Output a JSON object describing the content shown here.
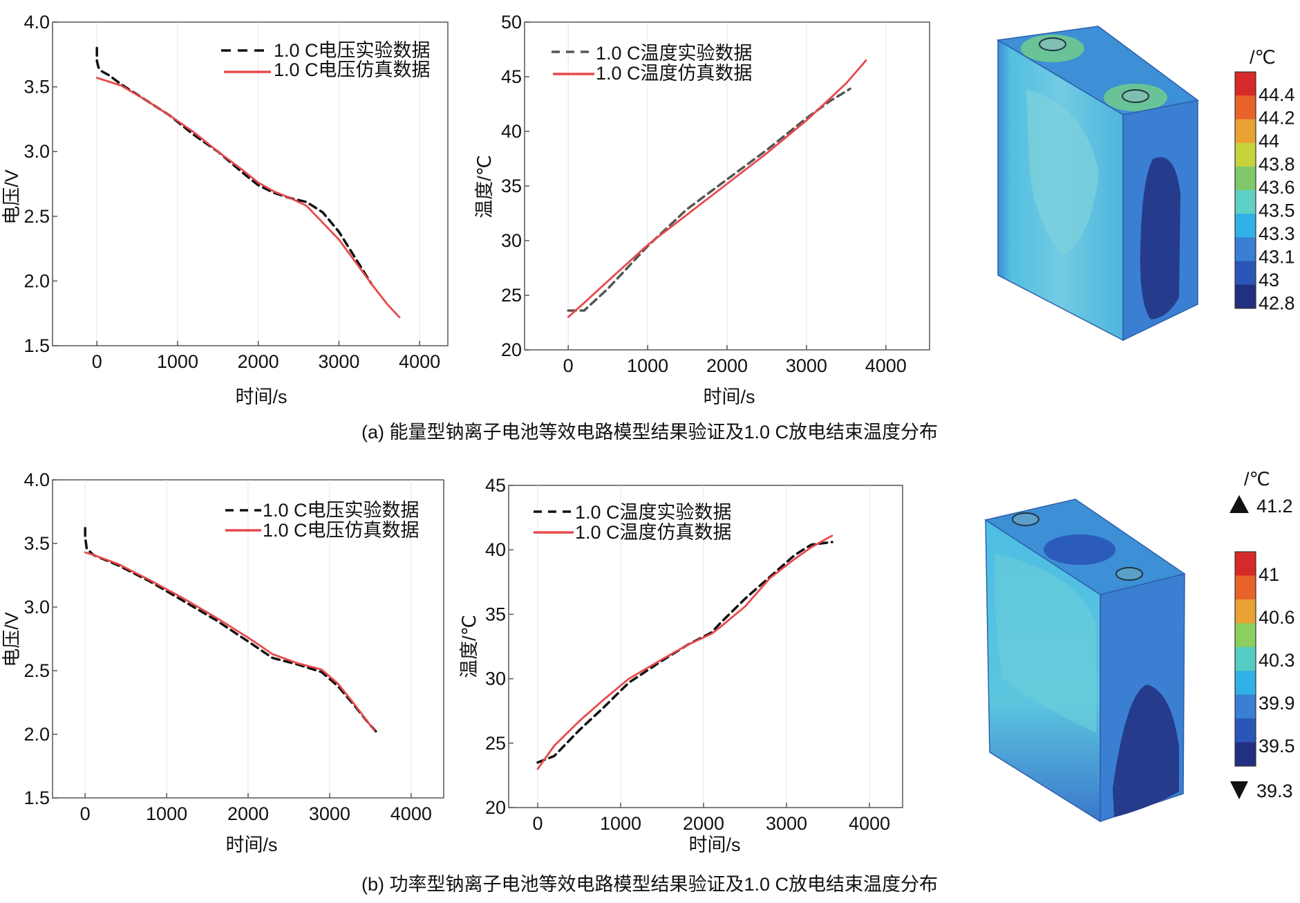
{
  "panels": [
    {
      "caption": "(a) 能量型钠离子电池等效电路模型结果验证及1.0 C放电结束温度分布",
      "colorbar": {
        "unit": "/℃",
        "labels": [
          "44.4",
          "44.2",
          "44",
          "43.8",
          "43.6",
          "43.5",
          "43.3",
          "43.1",
          "43",
          "42.8"
        ],
        "colors": [
          "#d62a2a",
          "#e8622a",
          "#e9a233",
          "#c8d23a",
          "#7fc96b",
          "#5fd0c4",
          "#2fb0e6",
          "#3a7fd2",
          "#2a56b8",
          "#232f80"
        ],
        "max_label": "",
        "min_label": ""
      }
    },
    {
      "caption": "(b) 功率型钠离子电池等效电路模型结果验证及1.0 C放电结束温度分布",
      "colorbar": {
        "unit": "/℃",
        "labels": [
          "41",
          "40.6",
          "40.3",
          "39.9",
          "39.5"
        ],
        "colors": [
          "#d62a2a",
          "#e8622a",
          "#e9a233",
          "#8bcf5e",
          "#55ccc4",
          "#2fb0e6",
          "#3a7fd2",
          "#2a56b8",
          "#232f80"
        ],
        "max_label": "41.2",
        "min_label": "39.3"
      }
    }
  ],
  "chart_data": [
    {
      "type": "line",
      "xlabel": "时间/s",
      "ylabel": "电压/V",
      "xlim": [
        -550,
        4350
      ],
      "ylim": [
        1.5,
        4.0
      ],
      "xticks": [
        0,
        1000,
        2000,
        3000,
        4000
      ],
      "yticks": [
        1.5,
        2.0,
        2.5,
        3.0,
        3.5,
        4.0
      ],
      "legend_position": "top-right",
      "series": [
        {
          "name": "1.0 C电压实验数据",
          "style": "dashed",
          "color": "#111111",
          "x": [
            0,
            0,
            20,
            60,
            150,
            300,
            600,
            900,
            1200,
            1500,
            1800,
            2000,
            2200,
            2400,
            2600,
            2800,
            3000,
            3200,
            3400
          ],
          "y": [
            3.8,
            3.7,
            3.65,
            3.62,
            3.59,
            3.52,
            3.4,
            3.28,
            3.13,
            3.0,
            2.84,
            2.74,
            2.68,
            2.64,
            2.61,
            2.53,
            2.38,
            2.18,
            1.98
          ]
        },
        {
          "name": "1.0 C电压仿真数据",
          "style": "solid",
          "color": "#e8484b",
          "x": [
            0,
            300,
            600,
            900,
            1200,
            1500,
            1800,
            2000,
            2200,
            2400,
            2600,
            2800,
            3000,
            3200,
            3400,
            3600,
            3750
          ],
          "y": [
            3.57,
            3.51,
            3.4,
            3.28,
            3.15,
            3.0,
            2.86,
            2.76,
            2.69,
            2.64,
            2.58,
            2.45,
            2.32,
            2.15,
            1.98,
            1.82,
            1.72
          ]
        }
      ]
    },
    {
      "type": "line",
      "xlabel": "时间/s",
      "ylabel": "温度/℃",
      "xlim": [
        -550,
        4550
      ],
      "ylim": [
        20,
        50
      ],
      "xticks": [
        0,
        1000,
        2000,
        3000,
        4000
      ],
      "yticks": [
        20,
        25,
        30,
        35,
        40,
        45,
        50
      ],
      "legend_position": "top-left",
      "series": [
        {
          "name": "1.0 C温度实验数据",
          "style": "dashed",
          "color": "#555555",
          "x": [
            0,
            200,
            500,
            1000,
            1500,
            2000,
            2500,
            3000,
            3300,
            3550
          ],
          "y": [
            23.6,
            23.6,
            25.6,
            29.5,
            32.9,
            35.6,
            38.3,
            41.2,
            42.8,
            43.9
          ]
        },
        {
          "name": "1.0 C温度仿真数据",
          "style": "solid",
          "color": "#e8484b",
          "x": [
            0,
            200,
            500,
            1000,
            1500,
            2000,
            2500,
            3000,
            3500,
            3750
          ],
          "y": [
            23.0,
            24.3,
            26.3,
            29.6,
            32.4,
            35.2,
            38.0,
            41.0,
            44.4,
            46.5
          ]
        }
      ]
    },
    {
      "type": "line",
      "xlabel": "时间/s",
      "ylabel": "电压/V",
      "xlim": [
        -400,
        4400
      ],
      "ylim": [
        1.5,
        4.0
      ],
      "xticks": [
        0,
        1000,
        2000,
        3000,
        4000
      ],
      "yticks": [
        1.5,
        2.0,
        2.5,
        3.0,
        3.5,
        4.0
      ],
      "legend_position": "top-right",
      "series": [
        {
          "name": "1.0 C电压实验数据",
          "style": "dashed",
          "color": "#111111",
          "x": [
            0,
            0,
            20,
            100,
            400,
            800,
            1200,
            1600,
            2000,
            2300,
            2600,
            2900,
            3100,
            3300,
            3500,
            3600
          ],
          "y": [
            3.62,
            3.55,
            3.46,
            3.41,
            3.33,
            3.2,
            3.05,
            2.9,
            2.73,
            2.6,
            2.55,
            2.49,
            2.38,
            2.23,
            2.07,
            2.0
          ]
        },
        {
          "name": "1.0 C电压仿真数据",
          "style": "solid",
          "color": "#e8484b",
          "x": [
            0,
            100,
            400,
            800,
            1200,
            1600,
            2000,
            2300,
            2600,
            2900,
            3100,
            3300,
            3500,
            3550
          ],
          "y": [
            3.43,
            3.41,
            3.34,
            3.21,
            3.07,
            2.92,
            2.76,
            2.63,
            2.56,
            2.51,
            2.4,
            2.24,
            2.07,
            2.03
          ]
        }
      ]
    },
    {
      "type": "line",
      "xlabel": "时间/s",
      "ylabel": "温度/℃",
      "xlim": [
        -350,
        4400
      ],
      "ylim": [
        20,
        45
      ],
      "xticks": [
        0,
        1000,
        2000,
        3000,
        4000
      ],
      "yticks": [
        20,
        25,
        30,
        35,
        40,
        45
      ],
      "legend_position": "top-left",
      "series": [
        {
          "name": "1.0 C温度实验数据",
          "style": "dashed",
          "color": "#111111",
          "x": [
            0,
            200,
            500,
            800,
            1100,
            1500,
            1800,
            2100,
            2200,
            2500,
            2800,
            3100,
            3300,
            3550
          ],
          "y": [
            23.5,
            24.0,
            26.0,
            27.8,
            29.7,
            31.4,
            32.6,
            33.6,
            34.3,
            36.2,
            37.9,
            39.6,
            40.4,
            40.6
          ]
        },
        {
          "name": "1.0 C温度仿真数据",
          "style": "solid",
          "color": "#e8484b",
          "x": [
            0,
            200,
            500,
            800,
            1100,
            1500,
            1800,
            2100,
            2200,
            2500,
            2800,
            3100,
            3300,
            3550
          ],
          "y": [
            23.0,
            24.8,
            26.7,
            28.4,
            30.0,
            31.5,
            32.6,
            33.5,
            34.0,
            35.6,
            37.8,
            39.3,
            40.2,
            41.1
          ]
        }
      ]
    }
  ]
}
